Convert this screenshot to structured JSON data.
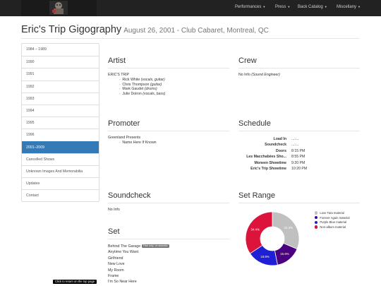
{
  "nav": {
    "items": [
      {
        "label": "Performances"
      },
      {
        "label": "Press"
      },
      {
        "label": "Back Catalog"
      },
      {
        "label": "Miscellany"
      }
    ]
  },
  "page": {
    "title": "Eric's Trip Gigography",
    "subtitle": "August 26, 2001 - Club Cabaret, Montreal, QC"
  },
  "sidebar": {
    "items": [
      {
        "label": "1984 – 1989"
      },
      {
        "label": "1990"
      },
      {
        "label": "1991"
      },
      {
        "label": "1992"
      },
      {
        "label": "1993"
      },
      {
        "label": "1994"
      },
      {
        "label": "1995"
      },
      {
        "label": "1996"
      },
      {
        "label": "2001–2009"
      },
      {
        "label": "Cancelled Shows"
      },
      {
        "label": "Unknown Images And Memorabilia"
      },
      {
        "label": "Updates"
      },
      {
        "label": "Contact"
      }
    ],
    "active_index": 8
  },
  "artist": {
    "heading": "Artist",
    "band": "ERIC'S TRIP",
    "members": [
      {
        "name": "Rick White",
        "role": "(vocals, guitar)"
      },
      {
        "name": "Chris Thompson",
        "role": "(guitar)"
      },
      {
        "name": "Mark Gaudet",
        "role": "(drums)"
      },
      {
        "name": "Julie Doiron",
        "role": "(vocals, bass)"
      }
    ]
  },
  "crew": {
    "heading": "Crew",
    "name": "No Info",
    "role": "(Sound Engineer)"
  },
  "promoter": {
    "heading": "Promoter",
    "company": "Greenland Presents",
    "contact": "Name Here If Known"
  },
  "schedule": {
    "heading": "Schedule",
    "rows": [
      {
        "label": "Load In",
        "value": "...:..."
      },
      {
        "label": "Soundcheck",
        "value": "...:..."
      },
      {
        "label": "Doors",
        "value": "8:15 PM"
      },
      {
        "label": "Les Macchabées Sho...",
        "value": "8:55 PM"
      },
      {
        "label": "Moneen Showtime",
        "value": "9:20 PM"
      },
      {
        "label": "Eric's Trip Showtime",
        "value": "10:20 PM"
      }
    ]
  },
  "soundcheck": {
    "heading": "Soundcheck",
    "text": "No Info"
  },
  "set": {
    "heading": "Set",
    "songs": [
      {
        "title": "Behind The Garage",
        "badge": "Rick only, on acoustic"
      },
      {
        "title": "Anytime You Want",
        "badge": ""
      },
      {
        "title": "Girlfriend",
        "badge": ""
      },
      {
        "title": "New Love",
        "badge": ""
      },
      {
        "title": "My Room",
        "badge": ""
      },
      {
        "title": "Frame",
        "badge": ""
      },
      {
        "title": "I'm So Near Here",
        "badge": ""
      }
    ]
  },
  "set_range": {
    "heading": "Set Range"
  },
  "chart_data": {
    "type": "pie",
    "categories": [
      "Love Tara material",
      "Forever Again material",
      "Purple Blue material",
      "Non-album material"
    ],
    "values": [
      31.3,
      15.6,
      18.8,
      34.4
    ],
    "labels": [
      "31.3%",
      "15.6%",
      "18.8%",
      "34.4%"
    ],
    "colors": [
      "#c0c0c0",
      "#4b0082",
      "#1f1fd6",
      "#dc143c"
    ],
    "legend_position": "right"
  },
  "tooltip": {
    "text": "Click to return on the top page"
  }
}
